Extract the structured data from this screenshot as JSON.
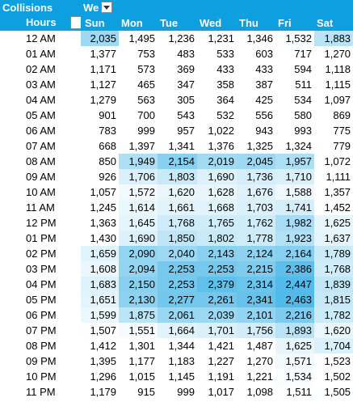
{
  "pivot": {
    "title": "Collisions",
    "column_field": "Weekday",
    "column_field_display": "We",
    "row_field": "Hours",
    "days": [
      "Sun",
      "Mon",
      "Tue",
      "Wed",
      "Thu",
      "Fri",
      "Sat"
    ],
    "hours": [
      "12 AM",
      "01 AM",
      "02 AM",
      "03 AM",
      "04 AM",
      "05 AM",
      "06 AM",
      "07 AM",
      "08 AM",
      "09 AM",
      "10 AM",
      "11 AM",
      "12 PM",
      "01 PM",
      "02 PM",
      "03 PM",
      "04 PM",
      "05 PM",
      "06 PM",
      "07 PM",
      "08 PM",
      "09 PM",
      "10 PM",
      "11 PM"
    ],
    "values": [
      [
        "2,035",
        "1,495",
        "1,236",
        "1,231",
        "1,346",
        "1,532",
        "1,883"
      ],
      [
        "1,377",
        "753",
        "483",
        "533",
        "603",
        "717",
        "1,270"
      ],
      [
        "1,171",
        "573",
        "369",
        "433",
        "433",
        "594",
        "1,118"
      ],
      [
        "1,127",
        "465",
        "347",
        "358",
        "387",
        "511",
        "1,115"
      ],
      [
        "1,279",
        "563",
        "305",
        "364",
        "425",
        "534",
        "1,097"
      ],
      [
        "901",
        "700",
        "543",
        "532",
        "556",
        "580",
        "869"
      ],
      [
        "783",
        "999",
        "957",
        "1,022",
        "943",
        "993",
        "775"
      ],
      [
        "668",
        "1,397",
        "1,341",
        "1,376",
        "1,325",
        "1,324",
        "779"
      ],
      [
        "850",
        "1,949",
        "2,154",
        "2,019",
        "2,045",
        "1,957",
        "1,072"
      ],
      [
        "926",
        "1,706",
        "1,803",
        "1,690",
        "1,736",
        "1,710",
        "1,111"
      ],
      [
        "1,057",
        "1,572",
        "1,620",
        "1,628",
        "1,676",
        "1,588",
        "1,357"
      ],
      [
        "1,245",
        "1,614",
        "1,661",
        "1,668",
        "1,703",
        "1,741",
        "1,452"
      ],
      [
        "1,363",
        "1,645",
        "1,768",
        "1,765",
        "1,762",
        "1,982",
        "1,625"
      ],
      [
        "1,430",
        "1,690",
        "1,850",
        "1,802",
        "1,778",
        "1,923",
        "1,637"
      ],
      [
        "1,659",
        "2,090",
        "2,040",
        "2,143",
        "2,124",
        "2,164",
        "1,789"
      ],
      [
        "1,608",
        "2,094",
        "2,253",
        "2,253",
        "2,215",
        "2,386",
        "1,768"
      ],
      [
        "1,683",
        "2,150",
        "2,253",
        "2,379",
        "2,314",
        "2,447",
        "1,839"
      ],
      [
        "1,651",
        "2,130",
        "2,277",
        "2,261",
        "2,341",
        "2,463",
        "1,815"
      ],
      [
        "1,599",
        "1,875",
        "2,061",
        "2,039",
        "2,101",
        "2,216",
        "1,782"
      ],
      [
        "1,507",
        "1,551",
        "1,664",
        "1,701",
        "1,756",
        "1,893",
        "1,620"
      ],
      [
        "1,412",
        "1,301",
        "1,344",
        "1,421",
        "1,487",
        "1,625",
        "1,704"
      ],
      [
        "1,395",
        "1,177",
        "1,183",
        "1,227",
        "1,270",
        "1,571",
        "1,523"
      ],
      [
        "1,296",
        "1,015",
        "1,145",
        "1,191",
        "1,221",
        "1,534",
        "1,502"
      ],
      [
        "1,179",
        "915",
        "999",
        "1,017",
        "1,098",
        "1,511",
        "1,505"
      ]
    ],
    "color_scale": {
      "low": "#ffffff",
      "high": "#0d9fe0",
      "min_value": 1500,
      "max_value": 2500
    },
    "header_color": "#0d9fe0"
  }
}
